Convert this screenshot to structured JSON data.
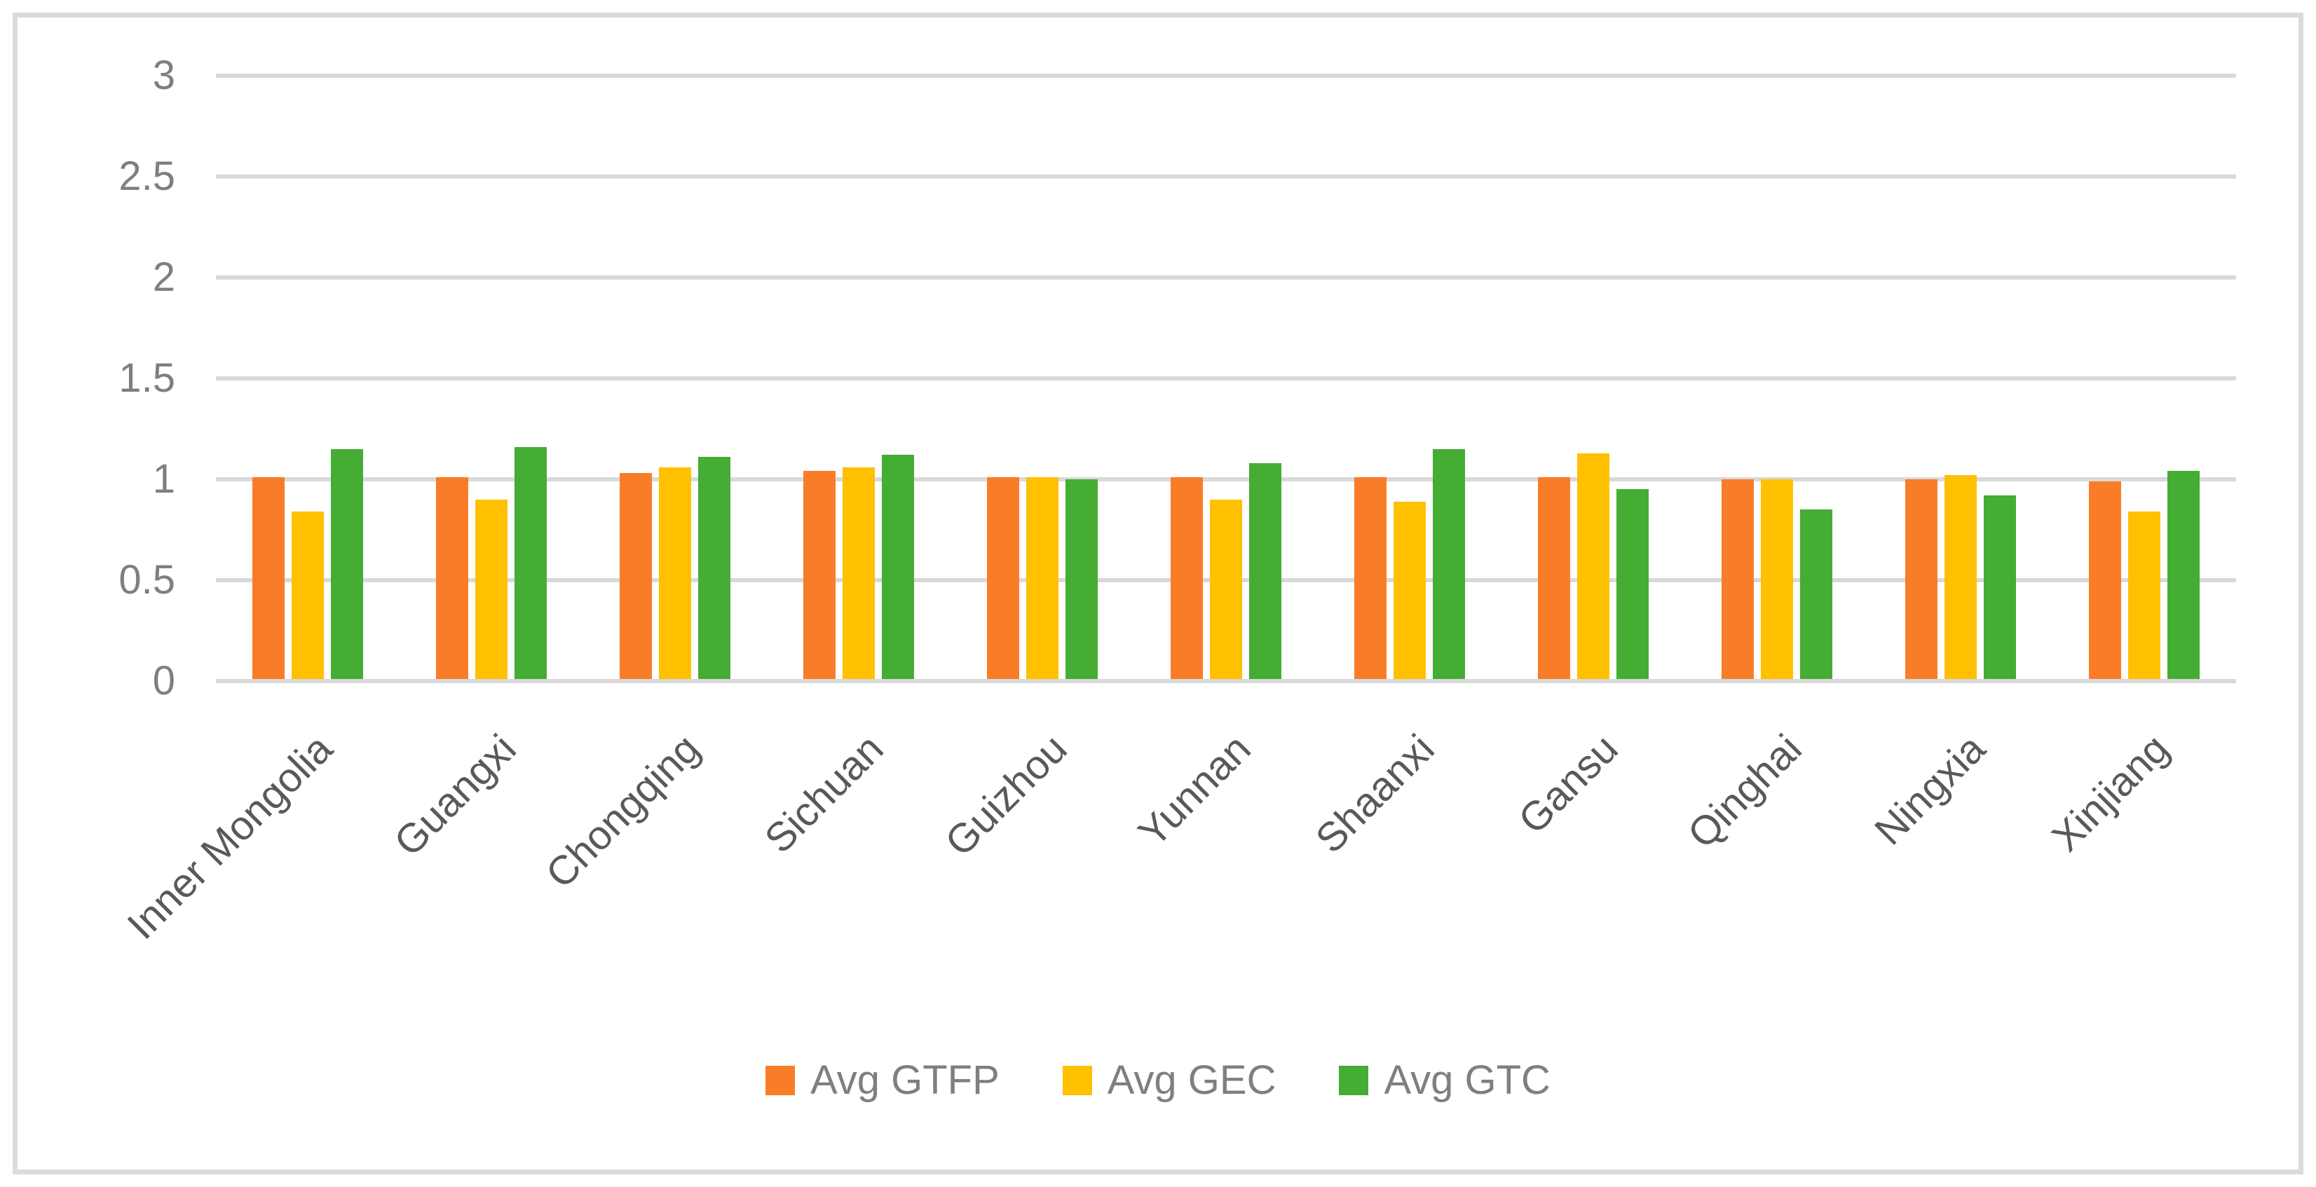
{
  "chart_data": {
    "type": "bar",
    "categories": [
      "Inner Mongolia",
      "Guangxi",
      "Chongqing",
      "Sichuan",
      "Guizhou",
      "Yunnan",
      "Shaanxi",
      "Gansu",
      "Qinghai",
      "Ningxia",
      "Xinjiang"
    ],
    "series": [
      {
        "name": "Avg GTFP",
        "color": "#F97D28",
        "values": [
          1.01,
          1.01,
          1.03,
          1.04,
          1.01,
          1.01,
          1.01,
          1.01,
          1.0,
          1.0,
          0.99
        ]
      },
      {
        "name": "Avg GEC",
        "color": "#FFC000",
        "values": [
          0.84,
          0.9,
          1.06,
          1.06,
          1.01,
          0.9,
          0.89,
          1.13,
          1.0,
          1.02,
          0.84
        ]
      },
      {
        "name": "Avg GTC",
        "color": "#45AC34",
        "values": [
          1.15,
          1.16,
          1.11,
          1.12,
          1.0,
          1.08,
          1.15,
          0.95,
          0.85,
          0.92,
          1.04
        ]
      }
    ],
    "title": "",
    "xlabel": "",
    "ylabel": "",
    "ylim": [
      0,
      3
    ],
    "ytick_labels": [
      "0",
      "0.5",
      "1",
      "1.5",
      "2",
      "2.5",
      "3"
    ],
    "grid": true,
    "legend_position": "bottom",
    "x_label_rotation_deg": 45
  },
  "colors": {
    "gridline": "#D9D9D9",
    "frame_border": "#DBDBDB",
    "ytick_text": "#7F7F7F",
    "category_text": "#595959",
    "legend_text": "#7F7F7F",
    "background": "#FFFFFF"
  }
}
